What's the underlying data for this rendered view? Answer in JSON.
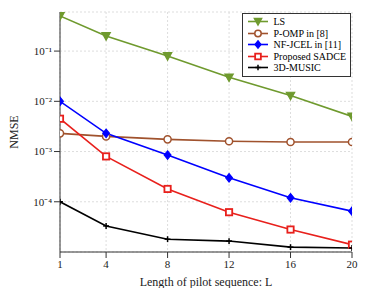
{
  "chart_data": {
    "type": "line",
    "xlabel": "Length of pilot sequence: L",
    "ylabel": "NMSE",
    "log": "y",
    "grid": true,
    "legend": "upper right",
    "x": [
      1,
      4,
      8,
      12,
      16,
      20
    ],
    "xlim": [
      1,
      20
    ],
    "xticks": [
      1,
      4,
      8,
      12,
      16,
      20
    ],
    "ylim": [
      1e-05,
      0.6
    ],
    "yticks": [
      {
        "value": 0.1,
        "label": "10⁻¹"
      },
      {
        "value": 0.01,
        "label": "10⁻²"
      },
      {
        "value": 0.001,
        "label": "10⁻³"
      },
      {
        "value": 0.0001,
        "label": "10⁻⁴"
      }
    ],
    "series": [
      {
        "name": "LS",
        "color": "#6f9a2e",
        "marker": "triangle-down",
        "values": [
          0.5,
          0.2,
          0.08,
          0.03,
          0.013,
          0.005
        ]
      },
      {
        "name": "P-OMP in [8]",
        "color": "#a0522d",
        "marker": "circle",
        "values": [
          0.0023,
          0.002,
          0.00175,
          0.0016,
          0.00155,
          0.00155
        ]
      },
      {
        "name": "NF-JCEL in [11]",
        "color": "#0000ff",
        "marker": "diamond",
        "values": [
          0.01,
          0.0023,
          0.00085,
          0.0003,
          0.00012,
          6.5e-05
        ]
      },
      {
        "name": "Proposed SADCE",
        "color": "#e8201c",
        "marker": "square",
        "values": [
          0.0045,
          0.0008,
          0.00018,
          6.2e-05,
          2.8e-05,
          1.4e-05
        ]
      },
      {
        "name": "3D-MUSIC",
        "color": "#000000",
        "marker": "plus",
        "values": [
          0.0001,
          3.3e-05,
          1.8e-05,
          1.65e-05,
          1.25e-05,
          1.2e-05
        ]
      }
    ]
  }
}
